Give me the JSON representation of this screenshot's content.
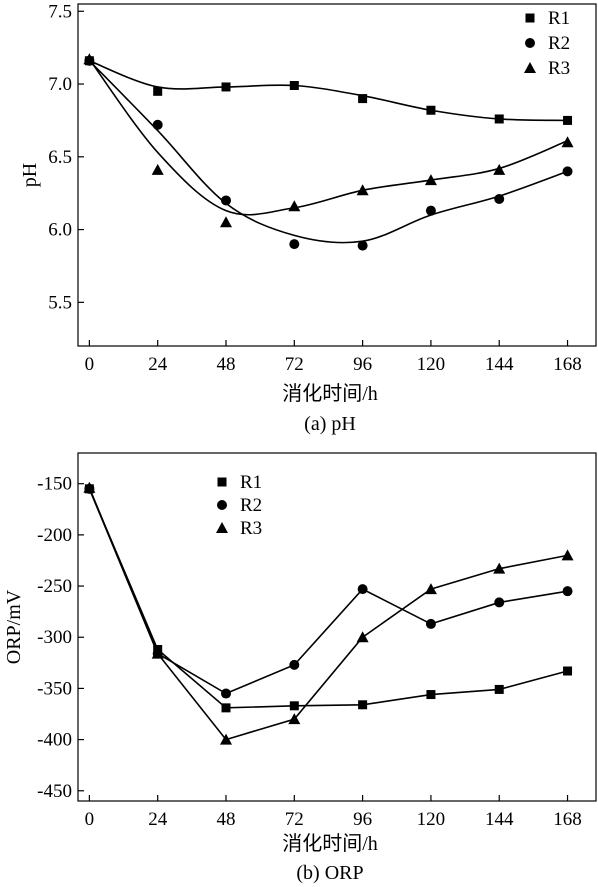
{
  "chart_data": [
    {
      "type": "line",
      "caption": "(a) pH",
      "xlabel": "消化时间/h",
      "ylabel": "pH",
      "x": [
        0,
        24,
        48,
        72,
        96,
        120,
        144,
        168
      ],
      "x_ticks": [
        "0",
        "24",
        "48",
        "72",
        "96",
        "120",
        "144",
        "168"
      ],
      "xlim": [
        -4,
        178
      ],
      "ylim": [
        5.2,
        7.55
      ],
      "y_ticks": [
        "5.5",
        "6.0",
        "6.5",
        "7.0",
        "7.5"
      ],
      "y_tick_values": [
        5.5,
        6.0,
        6.5,
        7.0,
        7.5
      ],
      "legend_position": "top-right",
      "fit": "smooth curve",
      "series": [
        {
          "name": "R1",
          "marker": "square",
          "values": [
            7.16,
            6.95,
            6.98,
            6.99,
            6.9,
            6.82,
            6.76,
            6.75
          ]
        },
        {
          "name": "R2",
          "marker": "circle",
          "values": [
            7.16,
            6.72,
            6.2,
            5.9,
            5.89,
            6.13,
            6.21,
            6.4
          ]
        },
        {
          "name": "R3",
          "marker": "triangle",
          "values": [
            7.17,
            6.41,
            6.05,
            6.16,
            6.27,
            6.34,
            6.41,
            6.6
          ]
        }
      ],
      "fit_curves": [
        [
          7.16,
          6.98,
          6.98,
          6.99,
          6.92,
          6.82,
          6.76,
          6.75
        ],
        [
          7.16,
          6.68,
          6.18,
          5.96,
          5.92,
          6.1,
          6.23,
          6.4
        ],
        [
          7.17,
          6.53,
          6.13,
          6.15,
          6.27,
          6.34,
          6.42,
          6.61
        ]
      ]
    },
    {
      "type": "line",
      "caption": "(b) ORP",
      "xlabel": "消化时间/h",
      "ylabel": "ORP/mV",
      "x": [
        0,
        24,
        48,
        72,
        96,
        120,
        144,
        168
      ],
      "x_ticks": [
        "0",
        "24",
        "48",
        "72",
        "96",
        "120",
        "144",
        "168"
      ],
      "xlim": [
        -4,
        178
      ],
      "ylim": [
        -460,
        -120
      ],
      "y_ticks": [
        "-150",
        "-200",
        "-250",
        "-300",
        "-350",
        "-400",
        "-450"
      ],
      "y_tick_values": [
        -150,
        -200,
        -250,
        -300,
        -350,
        -400,
        -450
      ],
      "legend_position": "top-left",
      "series": [
        {
          "name": "R1",
          "marker": "square",
          "values": [
            -155,
            -312,
            -369,
            -367,
            -366,
            -356,
            -351,
            -333
          ]
        },
        {
          "name": "R2",
          "marker": "circle",
          "values": [
            -155,
            -316,
            -355,
            -327,
            -253,
            -287,
            -266,
            -255
          ]
        },
        {
          "name": "R3",
          "marker": "triangle",
          "values": [
            -154,
            -316,
            -400,
            -380,
            -300,
            -253,
            -233,
            -220
          ]
        }
      ]
    }
  ]
}
